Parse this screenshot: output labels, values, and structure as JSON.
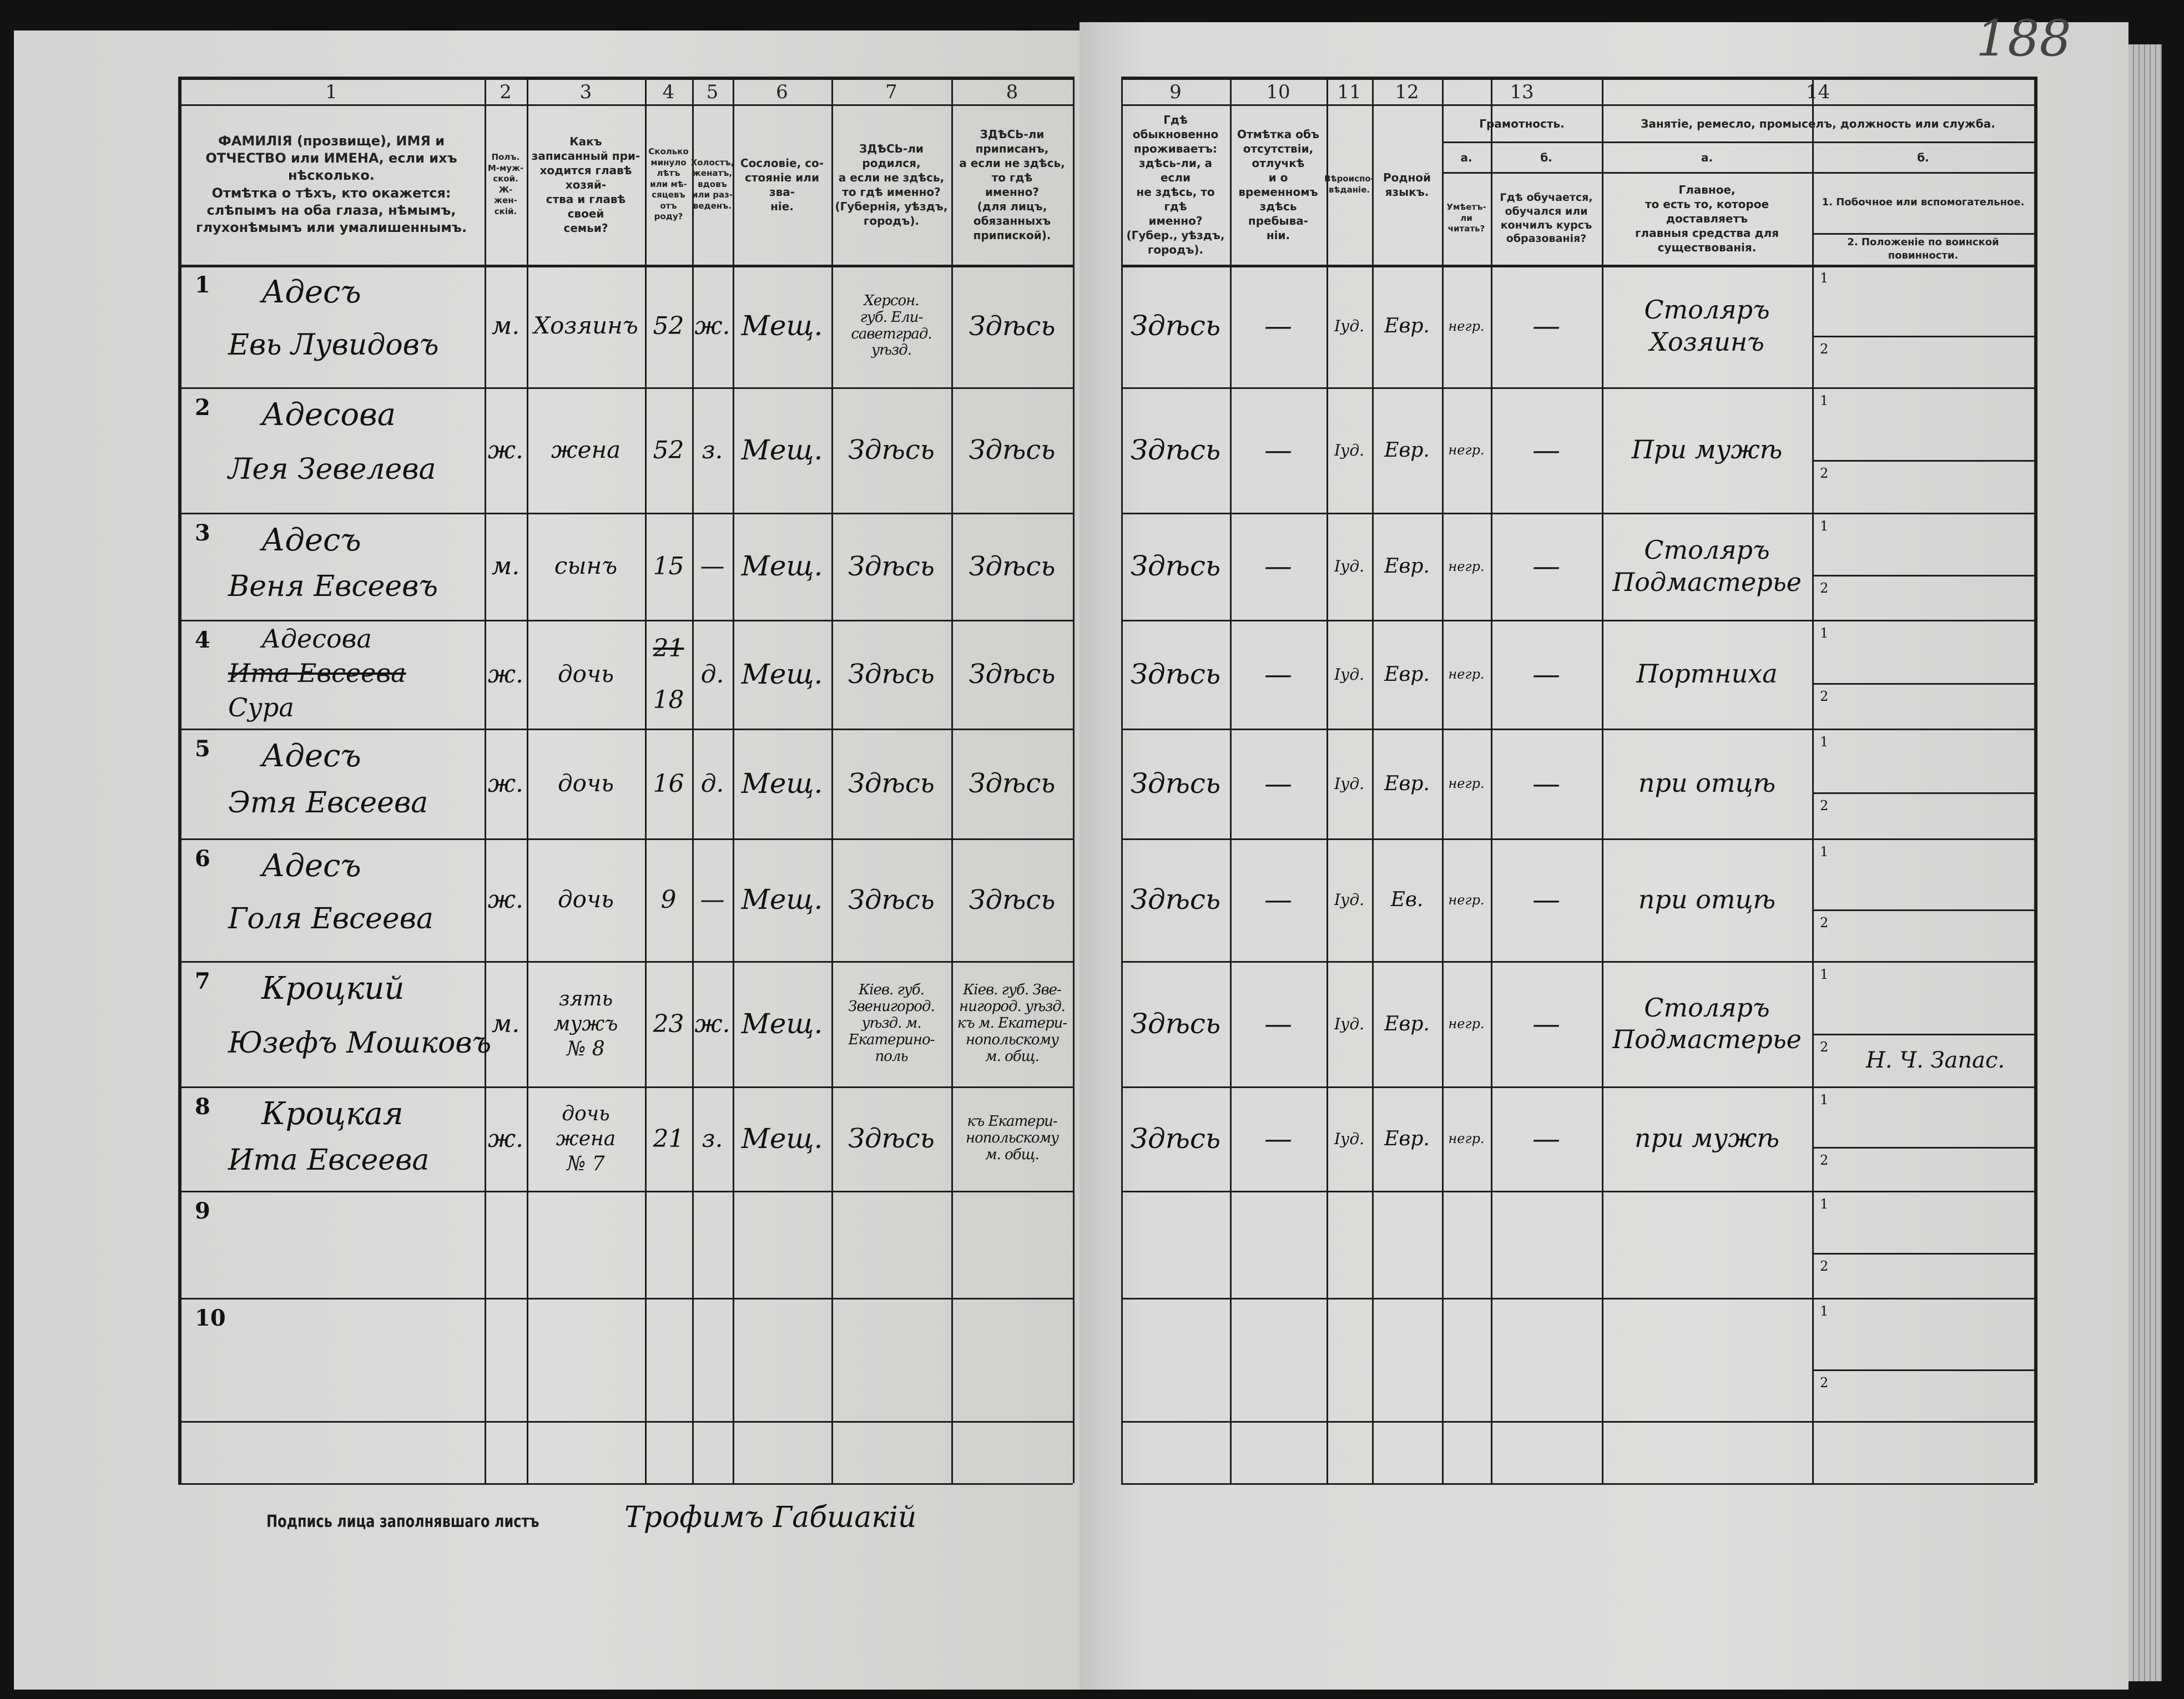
{
  "sheet_number": "188",
  "header": {
    "columns": [
      {
        "num": "1",
        "text": "ФАМИЛІЯ (прозвище), ИМЯ и ОТЧЕСТВО или ИМЕНА, если ихъ нѣсколько.\nОтмѣтка о тѣхъ, кто окажется: слѣпымъ на оба глаза, нѣмымъ, глухонѣмымъ или умалишеннымъ."
      },
      {
        "num": "2",
        "text": "Полъ.\nМ-муж-\nской.\nЖ-жен-\nскій."
      },
      {
        "num": "3",
        "text": "Какъ записанный при-\nходится главѣ хозяй-\nства и главѣ своей\nсемьи?"
      },
      {
        "num": "4",
        "text": "Сколько\nминуло\nлѣтъ\nили мѣ-\nсяцевъ\nотъ роду?"
      },
      {
        "num": "5",
        "text": "Холостъ,\nженатъ,\nвдовъ\nили раз-\nведенъ."
      },
      {
        "num": "6",
        "text": "Сословіе, со-\nстояніе или зва-\nніе."
      },
      {
        "num": "7",
        "text": "ЗДѢСЬ-ли родился,\nа если не здѣсь,\nто гдѣ именно?\n(Губернія, уѣздъ, городъ)."
      },
      {
        "num": "8",
        "text": "ЗДѢСЬ-ли приписанъ,\nа если не здѣсь, то гдѣ\nименно?\n(для лицъ, обязанныхъ\nприпиской)."
      },
      {
        "num": "9",
        "text": "Гдѣ обыкновенно\nпроживаетъ:\nздѣсь-ли, а если\nне здѣсь, то гдѣ\nименно?\n(Губер., уѣздъ, городъ)."
      },
      {
        "num": "10",
        "text": "Отмѣтка объ\nотсутствіи, отлучкѣ\nи о временномъ\nздѣсь пребыва-\nніи."
      },
      {
        "num": "11",
        "text": "Вѣроиспо-\nвѣданіе."
      },
      {
        "num": "12",
        "text": "Родной\nязыкъ."
      },
      {
        "num": "13",
        "text": "Грамотность.",
        "a_label": "а.",
        "a_text": "Умѣетъ-\nли\nчитать?",
        "b_label": "б.",
        "b_text": "Гдѣ обучается,\nобучался или\nкончилъ курсъ\nобразованія?"
      },
      {
        "num": "14",
        "text": "Занятіе, ремесло, промыселъ, должность или служба.",
        "a_label": "а.",
        "a_text": "Главное,\nто есть то, которое доставляетъ\nглавныя средства для существованія.",
        "b_label": "б.",
        "b1_text": "1. Побочное или вспомогательное.",
        "b2_text": "2. Положеніе по воинской повинности."
      }
    ]
  },
  "rows": [
    {
      "n": "1",
      "surname": "Адесъ",
      "given": "Евь Лувидовъ",
      "sex": "м.",
      "relation": "Хозяинъ",
      "age": "52",
      "marital": "ж.",
      "estate": "Мещ.",
      "birthplace": "Херсон.\nгуб. Ели-\nсаветград.\nуѣзд.",
      "registered": "Здѣсь",
      "residence": "Здѣсь",
      "absence": "—",
      "religion": "Іуд.",
      "language": "Евр.",
      "literate": "негр.",
      "education": "—",
      "occupation": "Столяръ\nХозяинъ",
      "side1": "",
      "side2": ""
    },
    {
      "n": "2",
      "surname": "Адесова",
      "given": "Лея Зевелева",
      "sex": "ж.",
      "relation": "жена",
      "age": "52",
      "marital": "з.",
      "estate": "Мещ.",
      "birthplace": "Здѣсь",
      "registered": "Здѣсь",
      "residence": "Здѣсь",
      "absence": "—",
      "religion": "Іуд.",
      "language": "Евр.",
      "literate": "негр.",
      "education": "—",
      "occupation": "При мужѣ",
      "side1": "",
      "side2": ""
    },
    {
      "n": "3",
      "surname": "Адесъ",
      "given": "Веня Евсеевъ",
      "sex": "м.",
      "relation": "сынъ",
      "age": "15",
      "marital": "—",
      "estate": "Мещ.",
      "birthplace": "Здѣсь",
      "registered": "Здѣсь",
      "residence": "Здѣсь",
      "absence": "—",
      "religion": "Іуд.",
      "language": "Евр.",
      "literate": "негр.",
      "education": "—",
      "occupation": "Столяръ\nПодмастерье",
      "side1": "",
      "side2": ""
    },
    {
      "n": "4",
      "surname": "Адесова",
      "given_struck": "Ита Евсеева",
      "given": "Сура",
      "sex": "ж.",
      "relation": "дочь",
      "age_struck": "21",
      "age": "18",
      "marital": "д.",
      "estate": "Мещ.",
      "birthplace": "Здѣсь",
      "registered": "Здѣсь",
      "residence": "Здѣсь",
      "absence": "—",
      "religion": "Іуд.",
      "language": "Евр.",
      "literate": "негр.",
      "education": "—",
      "occupation": "Портниха",
      "side1": "",
      "side2": ""
    },
    {
      "n": "5",
      "surname": "Адесъ",
      "given": "Этя Евсеева",
      "sex": "ж.",
      "relation": "дочь",
      "age": "16",
      "marital": "д.",
      "estate": "Мещ.",
      "birthplace": "Здѣсь",
      "registered": "Здѣсь",
      "residence": "Здѣсь",
      "absence": "—",
      "religion": "Іуд.",
      "language": "Евр.",
      "literate": "негр.",
      "education": "—",
      "occupation": "при отцѣ",
      "side1": "",
      "side2": ""
    },
    {
      "n": "6",
      "surname": "Адесъ",
      "given": "Голя Евсеева",
      "sex": "ж.",
      "relation": "дочь",
      "age": "9",
      "marital": "—",
      "estate": "Мещ.",
      "birthplace": "Здѣсь",
      "registered": "Здѣсь",
      "residence": "Здѣсь",
      "absence": "—",
      "religion": "Іуд.",
      "language": "Ев.",
      "literate": "негр.",
      "education": "—",
      "occupation": "при отцѣ",
      "side1": "",
      "side2": ""
    },
    {
      "n": "7",
      "surname": "Кроцкий",
      "given": "Юзефъ Мошковъ",
      "sex": "м.",
      "relation": "зять\nмужъ\n№ 8",
      "age": "23",
      "marital": "ж.",
      "estate": "Мещ.",
      "birthplace": "Кiев. губ.\nЗвенигород.\nуѣзд. м.\nЕкатерино-\nполь",
      "registered": "Кiев. губ. Зве-\nнигород. уѣзд.\nкъ м. Екатери-\nнопольскому\nм. общ.",
      "residence": "Здѣсь",
      "absence": "—",
      "religion": "Іуд.",
      "language": "Евр.",
      "literate": "негр.",
      "education": "—",
      "occupation": "Столяръ\nПодмастерье",
      "side1": "",
      "side2": "Н. Ч. Запас."
    },
    {
      "n": "8",
      "surname": "Кроцкая",
      "given": "Ита Евсеева",
      "sex": "ж.",
      "relation": "дочь\nжена\n№ 7",
      "age": "21",
      "marital": "з.",
      "estate": "Мещ.",
      "birthplace": "Здѣсь",
      "registered": "къ Екатери-\nнопольскому\nм. общ.",
      "residence": "Здѣсь",
      "absence": "—",
      "religion": "Іуд.",
      "language": "Евр.",
      "literate": "негр.",
      "education": "—",
      "occupation": "при мужѣ",
      "side1": "",
      "side2": ""
    },
    {
      "n": "9"
    },
    {
      "n": "10"
    }
  ],
  "sub_labels": {
    "one": "1",
    "two": "2"
  },
  "footer": {
    "signature_label": "Подпись лица заполнявшаго листъ",
    "signature": "Трофимъ Габшакій"
  }
}
